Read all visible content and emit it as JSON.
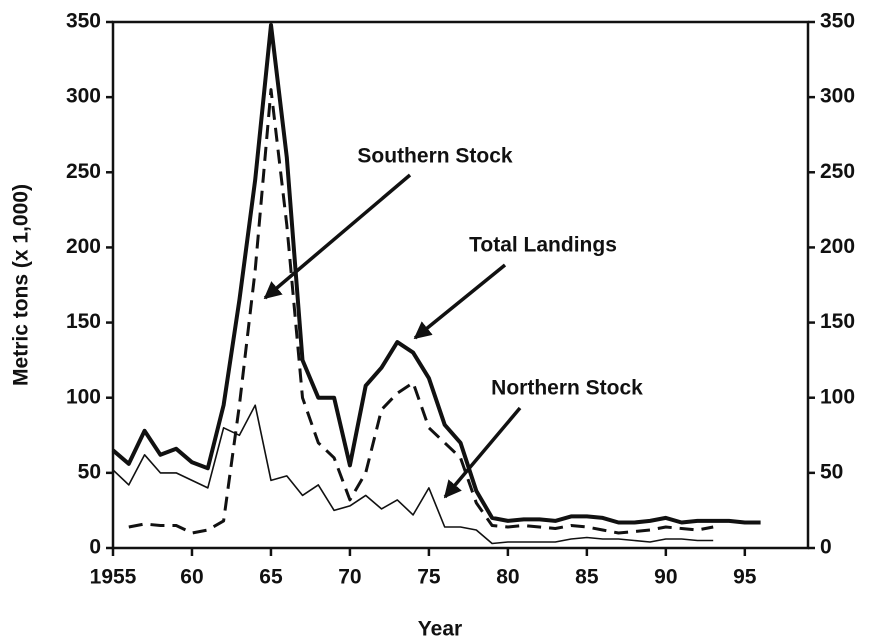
{
  "chart_data": {
    "type": "line",
    "xlabel": "Year",
    "ylabel": "Metric tons (x 1,000)",
    "x": [
      1955,
      1956,
      1957,
      1958,
      1959,
      1960,
      1961,
      1962,
      1963,
      1964,
      1965,
      1966,
      1967,
      1968,
      1969,
      1970,
      1971,
      1972,
      1973,
      1974,
      1975,
      1976,
      1977,
      1978,
      1979,
      1980,
      1981,
      1982,
      1983,
      1984,
      1985,
      1986,
      1987,
      1988,
      1989,
      1990,
      1991,
      1992,
      1993,
      1994,
      1995,
      1996
    ],
    "series": [
      {
        "name": "Total Landings",
        "color": "#111111",
        "style": "thick",
        "values": [
          65,
          56,
          78,
          62,
          66,
          57,
          53,
          95,
          165,
          245,
          348,
          260,
          125,
          100,
          100,
          55,
          108,
          120,
          137,
          130,
          113,
          82,
          70,
          38,
          20,
          18,
          19,
          19,
          18,
          21,
          21,
          20,
          17,
          17,
          18,
          20,
          17,
          18,
          18,
          18,
          17,
          17
        ]
      },
      {
        "name": "Southern Stock",
        "color": "#111111",
        "style": "dashed",
        "values": [
          null,
          14,
          16,
          15,
          15,
          10,
          12,
          18,
          95,
          185,
          305,
          215,
          100,
          70,
          60,
          32,
          50,
          92,
          103,
          110,
          80,
          70,
          60,
          30,
          15,
          14,
          15,
          14,
          13,
          15,
          14,
          12,
          10,
          11,
          12,
          14,
          13,
          12,
          14,
          null,
          null,
          null
        ]
      },
      {
        "name": "Northern Stock",
        "color": "#111111",
        "style": "thin",
        "values": [
          52,
          42,
          62,
          50,
          50,
          45,
          40,
          80,
          75,
          95,
          45,
          48,
          35,
          42,
          25,
          28,
          35,
          26,
          32,
          22,
          40,
          14,
          14,
          12,
          3,
          4,
          4,
          4,
          4,
          6,
          7,
          6,
          6,
          5,
          4,
          6,
          6,
          5,
          5,
          null,
          null,
          null
        ]
      }
    ],
    "annotations": [
      "Southern Stock",
      "Total Landings",
      "Northern Stock"
    ],
    "xlim": [
      1955,
      1999
    ],
    "xticks": [
      1955,
      {
        "value": 1960,
        "label": "60"
      },
      {
        "value": 1965,
        "label": "65"
      },
      {
        "value": 1970,
        "label": "70"
      },
      {
        "value": 1975,
        "label": "75"
      },
      {
        "value": 1980,
        "label": "80"
      },
      {
        "value": 1985,
        "label": "85"
      },
      {
        "value": 1990,
        "label": "90"
      },
      {
        "value": 1995,
        "label": "95"
      }
    ],
    "ylim": [
      0,
      350
    ],
    "yticks": [
      0,
      50,
      100,
      150,
      200,
      250,
      300,
      350
    ],
    "y2lim": [
      0,
      350
    ],
    "y2ticks": [
      0,
      50,
      100,
      150,
      200,
      250,
      300,
      350
    ]
  }
}
